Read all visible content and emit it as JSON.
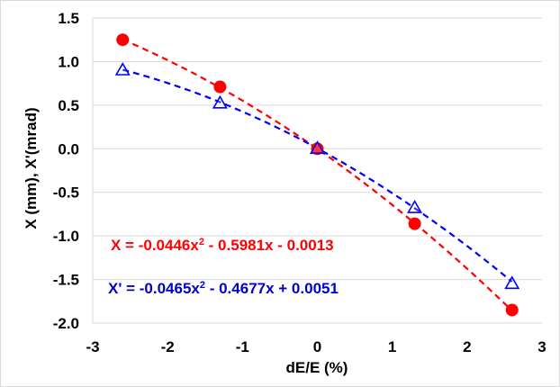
{
  "chart_data": {
    "type": "scatter",
    "xlabel": "dE/E (%)",
    "ylabel": "X (mm), X'(mrad)",
    "xlim": [
      -3,
      3
    ],
    "ylim": [
      -2.0,
      1.5
    ],
    "xticks": [
      "-3",
      "-2",
      "-1",
      "0",
      "1",
      "2",
      "3"
    ],
    "yticks": [
      "1.5",
      "1.0",
      "0.5",
      "0.0",
      "-0.5",
      "-1.0",
      "-1.5",
      "-2.0"
    ],
    "grid": "horizontal",
    "series": [
      {
        "marker": "filled-circle",
        "color": "#ff0000",
        "x": [
          -2.6,
          -1.3,
          0,
          1.3,
          2.6
        ],
        "y": [
          1.25,
          0.71,
          0.0,
          -0.86,
          -1.85
        ],
        "trendline": {
          "type": "polynomial-2",
          "a": -0.0446,
          "b": -0.5981,
          "c": -0.0013,
          "style": "dashed"
        },
        "equation_label": {
          "prefix": "X = -0.0446x",
          "sup": "2",
          "suffix": " - 0.5981x - 0.0013"
        }
      },
      {
        "marker": "open-triangle",
        "color": "#0000ff",
        "x": [
          -2.6,
          -1.3,
          0,
          1.3,
          2.6
        ],
        "y": [
          0.9,
          0.52,
          0.0,
          -0.68,
          -1.55
        ],
        "trendline": {
          "type": "polynomial-2",
          "a": -0.0465,
          "b": -0.4677,
          "c": 0.0051,
          "style": "dashed"
        },
        "equation_label": {
          "prefix": "X' = -0.0465x",
          "sup": "2",
          "suffix": " - 0.4677x + 0.0051"
        }
      }
    ]
  }
}
